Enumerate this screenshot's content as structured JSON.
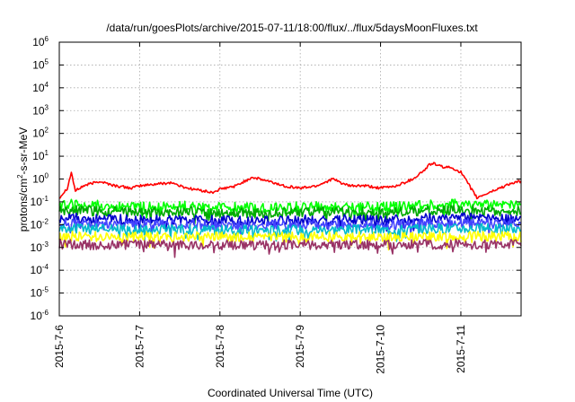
{
  "chart_data": {
    "type": "line",
    "title": "/data/run/goesPlots/archive/2015-07-11/18:00/flux/../flux/5daysMoonFluxes.txt",
    "xlabel": "Coordinated Universal Time (UTC)",
    "ylabel_parts": {
      "base": "protons/cm",
      "sup": "2",
      "tail": "-s-sr-MeV"
    },
    "yscale": "log",
    "ylim": [
      1e-06,
      1000000.0
    ],
    "y_ticks": [
      {
        "base": "10",
        "exp": "-6"
      },
      {
        "base": "10",
        "exp": "-5"
      },
      {
        "base": "10",
        "exp": "-4"
      },
      {
        "base": "10",
        "exp": "-3"
      },
      {
        "base": "10",
        "exp": "-2"
      },
      {
        "base": "10",
        "exp": "-1"
      },
      {
        "base": "10",
        "exp": "0"
      },
      {
        "base": "10",
        "exp": "1"
      },
      {
        "base": "10",
        "exp": "2"
      },
      {
        "base": "10",
        "exp": "3"
      },
      {
        "base": "10",
        "exp": "4"
      },
      {
        "base": "10",
        "exp": "5"
      },
      {
        "base": "10",
        "exp": "6"
      }
    ],
    "xlim_days": [
      0,
      5.75
    ],
    "x_ticks": [
      "2015-7-6",
      "2015-7-7",
      "2015-7-8",
      "2015-7-9",
      "2015-7-10",
      "2015-7-11"
    ],
    "grid": true,
    "series": [
      {
        "color": "#ff0000",
        "x_days": [
          0,
          0.1,
          0.15,
          0.2,
          0.3,
          0.5,
          0.7,
          0.9,
          1.0,
          1.2,
          1.4,
          1.5,
          1.6,
          1.8,
          1.9,
          2.0,
          2.2,
          2.4,
          2.6,
          2.8,
          3.0,
          3.2,
          3.4,
          3.6,
          3.8,
          4.0,
          4.2,
          4.4,
          4.55,
          4.6,
          4.65,
          4.75,
          4.9,
          5.0,
          5.2,
          5.4,
          5.6,
          5.75
        ],
        "values": [
          0.15,
          0.4,
          2.0,
          0.3,
          0.5,
          0.8,
          0.5,
          0.4,
          0.5,
          0.6,
          0.7,
          0.5,
          0.4,
          0.3,
          0.25,
          0.35,
          0.5,
          1.2,
          0.8,
          0.5,
          0.4,
          0.5,
          1.0,
          0.5,
          0.5,
          0.4,
          0.5,
          1.0,
          2.5,
          4.0,
          5.0,
          3.5,
          3.0,
          2.0,
          0.15,
          0.3,
          0.6,
          0.8
        ]
      },
      {
        "color": "#00ff00",
        "x_days": [
          0,
          0.5,
          1.0,
          1.5,
          2.0,
          2.5,
          3.0,
          3.5,
          4.0,
          4.5,
          5.0,
          5.5,
          5.75
        ],
        "values": [
          0.08,
          0.07,
          0.06,
          0.065,
          0.06,
          0.055,
          0.06,
          0.065,
          0.06,
          0.07,
          0.08,
          0.07,
          0.08
        ]
      },
      {
        "color": "#00aa00",
        "x_days": [
          0,
          0.5,
          1.0,
          1.5,
          2.0,
          2.5,
          3.0,
          3.5,
          4.0,
          4.5,
          5.0,
          5.5,
          5.75
        ],
        "values": [
          0.045,
          0.04,
          0.035,
          0.038,
          0.034,
          0.032,
          0.035,
          0.038,
          0.034,
          0.04,
          0.045,
          0.04,
          0.042
        ]
      },
      {
        "color": "#0000cc",
        "x_days": [
          0,
          0.5,
          1.0,
          1.5,
          2.0,
          2.5,
          3.0,
          3.5,
          4.0,
          4.5,
          5.0,
          5.5,
          5.75
        ],
        "values": [
          0.02,
          0.018,
          0.016,
          0.017,
          0.015,
          0.015,
          0.016,
          0.017,
          0.015,
          0.018,
          0.02,
          0.018,
          0.016
        ]
      },
      {
        "color": "#4444ff",
        "x_days": [
          0,
          0.5,
          1.0,
          1.5,
          2.0,
          2.5,
          3.0,
          3.5,
          4.0,
          4.5,
          5.0,
          5.5,
          5.75
        ],
        "values": [
          0.012,
          0.011,
          0.01,
          0.0105,
          0.0095,
          0.0095,
          0.01,
          0.0105,
          0.0095,
          0.011,
          0.012,
          0.011,
          0.012
        ]
      },
      {
        "color": "#00bbcc",
        "x_days": [
          0,
          0.5,
          1.0,
          1.5,
          2.0,
          2.5,
          3.0,
          3.5,
          4.0,
          4.5,
          5.0,
          5.5,
          5.75
        ],
        "values": [
          0.007,
          0.0065,
          0.006,
          0.0062,
          0.0058,
          0.0058,
          0.006,
          0.0062,
          0.0058,
          0.0065,
          0.007,
          0.0065,
          0.007
        ]
      },
      {
        "color": "#ffff00",
        "x_days": [
          0,
          0.5,
          1.0,
          1.5,
          2.0,
          2.5,
          3.0,
          3.5,
          4.0,
          4.5,
          5.0,
          5.5,
          5.75
        ],
        "values": [
          0.0032,
          0.003,
          0.0029,
          0.003,
          0.0029,
          0.0028,
          0.0029,
          0.003,
          0.0029,
          0.003,
          0.0031,
          0.003,
          0.0031
        ]
      },
      {
        "color": "#993366",
        "x_days": [
          0,
          0.5,
          1.0,
          1.5,
          2.0,
          2.5,
          3.0,
          3.5,
          4.0,
          4.5,
          5.0,
          5.5,
          5.75
        ],
        "values": [
          0.0014,
          0.0013,
          0.0013,
          0.00135,
          0.0013,
          0.00125,
          0.0013,
          0.00135,
          0.0013,
          0.00135,
          0.0014,
          0.0013,
          0.0014
        ]
      }
    ]
  }
}
